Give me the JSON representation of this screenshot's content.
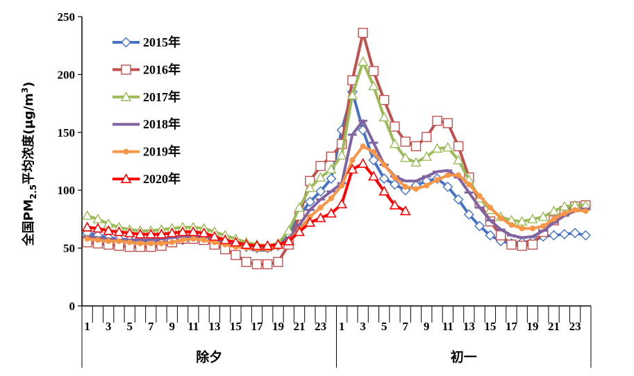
{
  "chart_data": {
    "type": "line",
    "ylabel_main": "全国PM",
    "ylabel_sub": "2.5",
    "ylabel_rest": "平均浓度(μg/m",
    "ylabel_sup": "3",
    "ylabel_close": ")",
    "ylim": [
      0,
      250
    ],
    "yticks": [
      0,
      50,
      100,
      150,
      200,
      250
    ],
    "x_tick_labels": [
      "1",
      "3",
      "5",
      "7",
      "9",
      "11",
      "13",
      "15",
      "17",
      "19",
      "21",
      "23",
      "1",
      "3",
      "5",
      "7",
      "9",
      "11",
      "13",
      "15",
      "17",
      "19",
      "21",
      "23"
    ],
    "groups": [
      {
        "label": "除夕",
        "hours": 24
      },
      {
        "label": "初一",
        "hours": 24
      }
    ],
    "grid": false,
    "legend_position": "top-left",
    "series": [
      {
        "name": "2015年",
        "color": "#4472c4",
        "marker": "diamond",
        "values": [
          63,
          61,
          59,
          58,
          57,
          56,
          56,
          55,
          56,
          57,
          58,
          58,
          57,
          56,
          53,
          51,
          50,
          50,
          52,
          62,
          78,
          90,
          99,
          110,
          152,
          185,
          152,
          126,
          110,
          105,
          100,
          104,
          108,
          110,
          103,
          92,
          79,
          69,
          61,
          56,
          54,
          55,
          56,
          60,
          61,
          62,
          63,
          61
        ]
      },
      {
        "name": "2016年",
        "color": "#c0504d",
        "marker": "square",
        "values": [
          55,
          54,
          53,
          52,
          51,
          51,
          51,
          52,
          55,
          58,
          58,
          57,
          53,
          49,
          44,
          38,
          36,
          36,
          38,
          53,
          78,
          108,
          121,
          129,
          140,
          195,
          236,
          203,
          178,
          155,
          142,
          138,
          146,
          160,
          158,
          138,
          111,
          89,
          73,
          61,
          53,
          52,
          53,
          64,
          74,
          82,
          86,
          87
        ]
      },
      {
        "name": "2017年",
        "color": "#9bbb59",
        "marker": "triangle",
        "values": [
          78,
          75,
          71,
          68,
          66,
          65,
          65,
          66,
          67,
          68,
          68,
          67,
          64,
          61,
          58,
          55,
          53,
          52,
          54,
          65,
          85,
          102,
          111,
          118,
          130,
          182,
          211,
          190,
          163,
          140,
          128,
          124,
          129,
          136,
          137,
          126,
          109,
          93,
          83,
          77,
          74,
          73,
          75,
          77,
          82,
          86,
          87,
          87
        ]
      },
      {
        "name": "2018年",
        "color": "#8064a2",
        "marker": "dash",
        "values": [
          60,
          59,
          58,
          57,
          57,
          57,
          57,
          58,
          59,
          60,
          60,
          60,
          58,
          55,
          52,
          50,
          48,
          48,
          51,
          58,
          70,
          83,
          92,
          99,
          106,
          148,
          160,
          141,
          122,
          112,
          108,
          108,
          112,
          116,
          117,
          111,
          98,
          85,
          74,
          66,
          61,
          59,
          60,
          65,
          72,
          78,
          82,
          84
        ]
      },
      {
        "name": "2019年",
        "color": "#f79646",
        "marker": "circle",
        "values": [
          58,
          57,
          56,
          56,
          55,
          54,
          54,
          54,
          55,
          57,
          58,
          57,
          55,
          53,
          51,
          50,
          49,
          49,
          51,
          56,
          66,
          77,
          85,
          93,
          104,
          126,
          138,
          133,
          122,
          111,
          103,
          101,
          104,
          109,
          113,
          113,
          105,
          95,
          85,
          76,
          70,
          67,
          67,
          69,
          75,
          80,
          83,
          82
        ]
      },
      {
        "name": "2020年",
        "color": "#ff0000",
        "marker": "triangle-filled",
        "values": [
          68,
          67,
          65,
          64,
          63,
          62,
          62,
          62,
          63,
          64,
          64,
          63,
          60,
          57,
          55,
          53,
          52,
          52,
          53,
          56,
          64,
          72,
          76,
          80,
          88,
          118,
          123,
          112,
          99,
          87,
          82
        ]
      }
    ]
  }
}
